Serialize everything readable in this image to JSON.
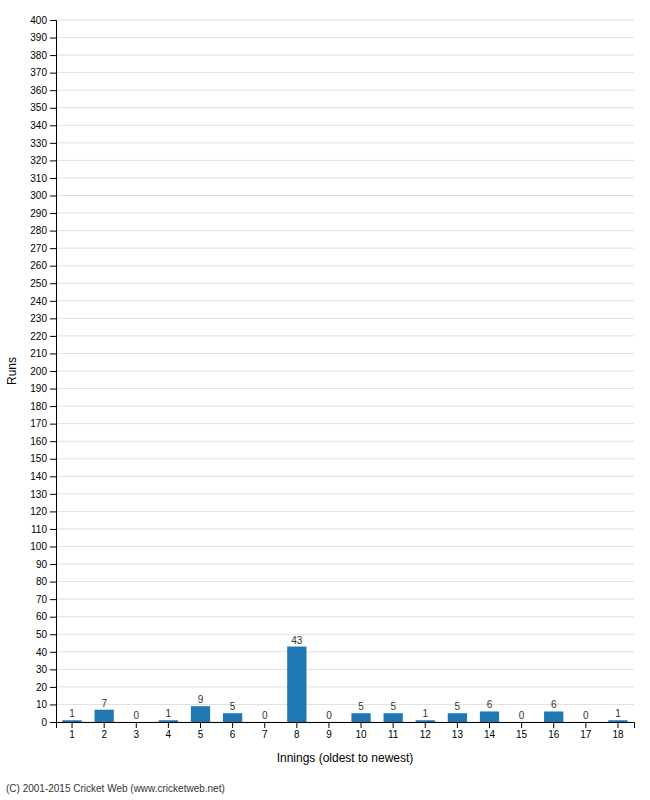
{
  "chart_data": {
    "type": "bar",
    "categories": [
      "1",
      "2",
      "3",
      "4",
      "5",
      "6",
      "7",
      "8",
      "9",
      "10",
      "11",
      "12",
      "13",
      "14",
      "15",
      "16",
      "17",
      "18"
    ],
    "values": [
      1,
      7,
      0,
      1,
      9,
      5,
      0,
      43,
      0,
      5,
      5,
      1,
      5,
      6,
      0,
      6,
      0,
      1
    ],
    "xlabel": "Innings (oldest to newest)",
    "ylabel": "Runs",
    "ylim": [
      0,
      400
    ],
    "yticks": [
      0,
      10,
      20,
      30,
      40,
      50,
      60,
      70,
      80,
      90,
      100,
      110,
      120,
      130,
      140,
      150,
      160,
      170,
      180,
      190,
      200,
      210,
      220,
      230,
      240,
      250,
      260,
      270,
      280,
      290,
      300,
      310,
      320,
      330,
      340,
      350,
      360,
      370,
      380,
      390,
      400
    ],
    "grid": true,
    "data_labels": true,
    "annotations": [
      "(C) 2001-2015 Cricket Web (www.cricketweb.net)"
    ]
  }
}
